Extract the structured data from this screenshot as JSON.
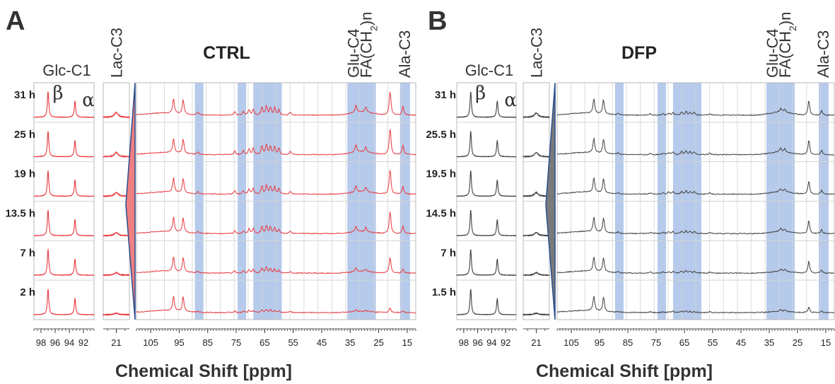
{
  "chart_data": [
    {
      "type": "line",
      "panel": "A",
      "title": "CTRL",
      "color": "#e8383d",
      "wedge_color": "#ef7f81",
      "xlabel": "Chemical Shift [ppm]",
      "times": [
        "31 h",
        "25 h",
        "19 h",
        "13.5 h",
        "7 h",
        "2 h"
      ],
      "subplots": {
        "glc": {
          "label": "Glc-C1",
          "xlim": [
            99,
            90.5
          ],
          "ticks": [
            98,
            96,
            94,
            92
          ],
          "beta_symbol": "β",
          "alpha_symbol": "α"
        },
        "lac": {
          "label": "Lac-C3",
          "xlim": [
            22.5,
            19.5
          ],
          "ticks": [
            21
          ]
        },
        "main": {
          "xlim": [
            110,
            12
          ],
          "ticks": [
            105,
            95,
            85,
            75,
            65,
            55,
            45,
            35,
            25,
            15
          ],
          "bands": [
            [
              89.5,
              86.5
            ],
            [
              74.5,
              71.5
            ],
            [
              69,
              59
            ],
            [
              36,
              26
            ],
            [
              17.5,
              14
            ]
          ],
          "band_color": "#a9c1e8",
          "band_labels": [
            {
              "text": "Glu-C4",
              "ppm": 34
            },
            {
              "text": "FA(CH",
              "sub": "2",
              "after": ")n",
              "ppm": 29.5
            },
            {
              "text": "Ala-C3",
              "ppm": 16
            }
          ]
        }
      },
      "series_peaks_main": [
        {
          "time": "31 h",
          "peaks": [
            [
              97,
              0.55
            ],
            [
              93.6,
              0.55
            ],
            [
              88.5,
              0.1
            ],
            [
              75.5,
              0.14
            ],
            [
              72.5,
              0.12
            ],
            [
              70.5,
              0.2
            ],
            [
              69,
              0.22
            ],
            [
              66,
              0.3
            ],
            [
              64.4,
              0.34
            ],
            [
              63,
              0.28
            ],
            [
              61.5,
              0.28
            ],
            [
              60,
              0.2
            ],
            [
              56,
              0.12
            ],
            [
              33,
              0.26
            ],
            [
              29.5,
              0.2
            ],
            [
              21,
              0.9
            ],
            [
              16.5,
              0.35
            ]
          ]
        },
        {
          "time": "25 h",
          "peaks": [
            [
              97,
              0.55
            ],
            [
              93.6,
              0.55
            ],
            [
              88.5,
              0.1
            ],
            [
              75.5,
              0.14
            ],
            [
              72.5,
              0.14
            ],
            [
              70.5,
              0.22
            ],
            [
              69,
              0.24
            ],
            [
              66,
              0.33
            ],
            [
              64.4,
              0.38
            ],
            [
              63,
              0.3
            ],
            [
              61.5,
              0.3
            ],
            [
              60,
              0.22
            ],
            [
              56,
              0.12
            ],
            [
              33,
              0.28
            ],
            [
              29.5,
              0.2
            ],
            [
              21,
              1.0
            ],
            [
              16.5,
              0.35
            ]
          ]
        },
        {
          "time": "19 h",
          "peaks": [
            [
              97,
              0.55
            ],
            [
              93.6,
              0.55
            ],
            [
              88.5,
              0.08
            ],
            [
              75.5,
              0.12
            ],
            [
              72.5,
              0.12
            ],
            [
              70.5,
              0.2
            ],
            [
              69,
              0.22
            ],
            [
              66,
              0.3
            ],
            [
              64.4,
              0.34
            ],
            [
              63,
              0.28
            ],
            [
              61.5,
              0.26
            ],
            [
              60,
              0.2
            ],
            [
              56,
              0.1
            ],
            [
              33,
              0.24
            ],
            [
              29.5,
              0.18
            ],
            [
              21,
              0.95
            ],
            [
              16.5,
              0.3
            ]
          ]
        },
        {
          "time": "13.5 h",
          "peaks": [
            [
              97,
              0.55
            ],
            [
              93.6,
              0.55
            ],
            [
              88.5,
              0.08
            ],
            [
              75.5,
              0.1
            ],
            [
              72.5,
              0.1
            ],
            [
              70.5,
              0.18
            ],
            [
              69,
              0.2
            ],
            [
              66,
              0.26
            ],
            [
              64.4,
              0.3
            ],
            [
              63,
              0.24
            ],
            [
              61.5,
              0.22
            ],
            [
              60,
              0.16
            ],
            [
              56,
              0.1
            ],
            [
              33,
              0.22
            ],
            [
              29.5,
              0.16
            ],
            [
              21,
              0.85
            ],
            [
              16.5,
              0.28
            ]
          ]
        },
        {
          "time": "7 h",
          "peaks": [
            [
              97,
              0.55
            ],
            [
              93.6,
              0.55
            ],
            [
              88.5,
              0.06
            ],
            [
              75.5,
              0.08
            ],
            [
              72.5,
              0.08
            ],
            [
              70.5,
              0.12
            ],
            [
              69,
              0.14
            ],
            [
              66,
              0.18
            ],
            [
              64.4,
              0.22
            ],
            [
              63,
              0.16
            ],
            [
              61.5,
              0.14
            ],
            [
              60,
              0.1
            ],
            [
              56,
              0.06
            ],
            [
              33,
              0.14
            ],
            [
              29.5,
              0.1
            ],
            [
              21,
              0.6
            ],
            [
              16.5,
              0.14
            ]
          ]
        },
        {
          "time": "2 h",
          "peaks": [
            [
              97,
              0.55
            ],
            [
              93.6,
              0.55
            ],
            [
              88.5,
              0.04
            ],
            [
              75.5,
              0.06
            ],
            [
              72.5,
              0.05
            ],
            [
              70.5,
              0.08
            ],
            [
              69,
              0.08
            ],
            [
              66,
              0.1
            ],
            [
              64.4,
              0.12
            ],
            [
              63,
              0.1
            ],
            [
              61.5,
              0.08
            ],
            [
              60,
              0.06
            ],
            [
              56,
              0.04
            ],
            [
              33,
              0.06
            ],
            [
              29.5,
              0.04
            ],
            [
              21,
              0.18
            ],
            [
              16.5,
              0.06
            ]
          ]
        }
      ]
    },
    {
      "type": "line",
      "panel": "B",
      "title": "DFP",
      "color": "#404040",
      "wedge_color": "#7a7a7a",
      "xlabel": "Chemical Shift [ppm]",
      "times": [
        "31 h",
        "25.5 h",
        "19.5 h",
        "14.5 h",
        "7 h",
        "1.5 h"
      ],
      "subplots": {
        "glc": {
          "label": "Glc-C1",
          "xlim": [
            99,
            90.5
          ],
          "ticks": [
            98,
            96,
            94,
            92
          ],
          "beta_symbol": "β",
          "alpha_symbol": "α"
        },
        "lac": {
          "label": "Lac-C3",
          "xlim": [
            22.5,
            19.5
          ],
          "ticks": [
            21
          ]
        },
        "main": {
          "xlim": [
            110,
            12
          ],
          "ticks": [
            105,
            95,
            85,
            75,
            65,
            55,
            45,
            35,
            25,
            15
          ],
          "bands": [
            [
              89.5,
              86.5
            ],
            [
              74.5,
              71.5
            ],
            [
              69,
              59
            ],
            [
              36,
              26
            ],
            [
              17.5,
              14
            ]
          ],
          "band_color": "#a9c1e8",
          "band_labels": [
            {
              "text": "Glu-C4",
              "ppm": 34
            },
            {
              "text": "FA(CH",
              "sub": "2",
              "after": ")n",
              "ppm": 29.5
            },
            {
              "text": "Ala-C3",
              "ppm": 16
            }
          ]
        }
      },
      "series_peaks_main": [
        {
          "time": "31 h",
          "peaks": [
            [
              97,
              0.55
            ],
            [
              93.6,
              0.55
            ],
            [
              88.5,
              0.06
            ],
            [
              77,
              0.06
            ],
            [
              72.5,
              0.06
            ],
            [
              70.5,
              0.08
            ],
            [
              69,
              0.1
            ],
            [
              66,
              0.12
            ],
            [
              64.4,
              0.14
            ],
            [
              63,
              0.1
            ],
            [
              61.5,
              0.1
            ],
            [
              56,
              0.06
            ],
            [
              31,
              0.14
            ],
            [
              29.5,
              0.12
            ],
            [
              21,
              0.55
            ],
            [
              16.5,
              0.16
            ]
          ]
        },
        {
          "time": "25.5 h",
          "peaks": [
            [
              97,
              0.55
            ],
            [
              93.6,
              0.55
            ],
            [
              88.5,
              0.06
            ],
            [
              77,
              0.06
            ],
            [
              72.5,
              0.06
            ],
            [
              70.5,
              0.08
            ],
            [
              69,
              0.1
            ],
            [
              66,
              0.12
            ],
            [
              64.4,
              0.14
            ],
            [
              63,
              0.1
            ],
            [
              61.5,
              0.1
            ],
            [
              56,
              0.06
            ],
            [
              31,
              0.14
            ],
            [
              29.5,
              0.12
            ],
            [
              21,
              0.55
            ],
            [
              16.5,
              0.16
            ]
          ]
        },
        {
          "time": "19.5 h",
          "peaks": [
            [
              97,
              0.55
            ],
            [
              93.6,
              0.55
            ],
            [
              88.5,
              0.05
            ],
            [
              77,
              0.05
            ],
            [
              72.5,
              0.05
            ],
            [
              70.5,
              0.08
            ],
            [
              69,
              0.09
            ],
            [
              66,
              0.1
            ],
            [
              64.4,
              0.12
            ],
            [
              63,
              0.09
            ],
            [
              61.5,
              0.09
            ],
            [
              56,
              0.05
            ],
            [
              31,
              0.12
            ],
            [
              29.5,
              0.1
            ],
            [
              21,
              0.5
            ],
            [
              16.5,
              0.14
            ]
          ]
        },
        {
          "time": "14.5 h",
          "peaks": [
            [
              97,
              0.55
            ],
            [
              93.6,
              0.55
            ],
            [
              88.5,
              0.05
            ],
            [
              77,
              0.05
            ],
            [
              72.5,
              0.05
            ],
            [
              70.5,
              0.07
            ],
            [
              69,
              0.08
            ],
            [
              66,
              0.1
            ],
            [
              64.4,
              0.11
            ],
            [
              63,
              0.08
            ],
            [
              61.5,
              0.08
            ],
            [
              56,
              0.05
            ],
            [
              31,
              0.12
            ],
            [
              29.5,
              0.1
            ],
            [
              21,
              0.5
            ],
            [
              16.5,
              0.14
            ]
          ]
        },
        {
          "time": "7 h",
          "peaks": [
            [
              97,
              0.55
            ],
            [
              93.6,
              0.55
            ],
            [
              88.5,
              0.04
            ],
            [
              77,
              0.04
            ],
            [
              72.5,
              0.04
            ],
            [
              70.5,
              0.06
            ],
            [
              69,
              0.07
            ],
            [
              66,
              0.08
            ],
            [
              64.4,
              0.09
            ],
            [
              63,
              0.07
            ],
            [
              61.5,
              0.06
            ],
            [
              56,
              0.04
            ],
            [
              31,
              0.1
            ],
            [
              29.5,
              0.08
            ],
            [
              21,
              0.45
            ],
            [
              16.5,
              0.12
            ]
          ]
        },
        {
          "time": "1.5 h",
          "peaks": [
            [
              97,
              0.55
            ],
            [
              93.6,
              0.55
            ],
            [
              88.5,
              0.03
            ],
            [
              77,
              0.03
            ],
            [
              72.5,
              0.03
            ],
            [
              70.5,
              0.04
            ],
            [
              69,
              0.05
            ],
            [
              66,
              0.05
            ],
            [
              64.4,
              0.06
            ],
            [
              63,
              0.05
            ],
            [
              61.5,
              0.04
            ],
            [
              56,
              0.03
            ],
            [
              31,
              0.06
            ],
            [
              29.5,
              0.05
            ],
            [
              21,
              0.2
            ],
            [
              16.5,
              0.06
            ]
          ]
        }
      ]
    }
  ]
}
